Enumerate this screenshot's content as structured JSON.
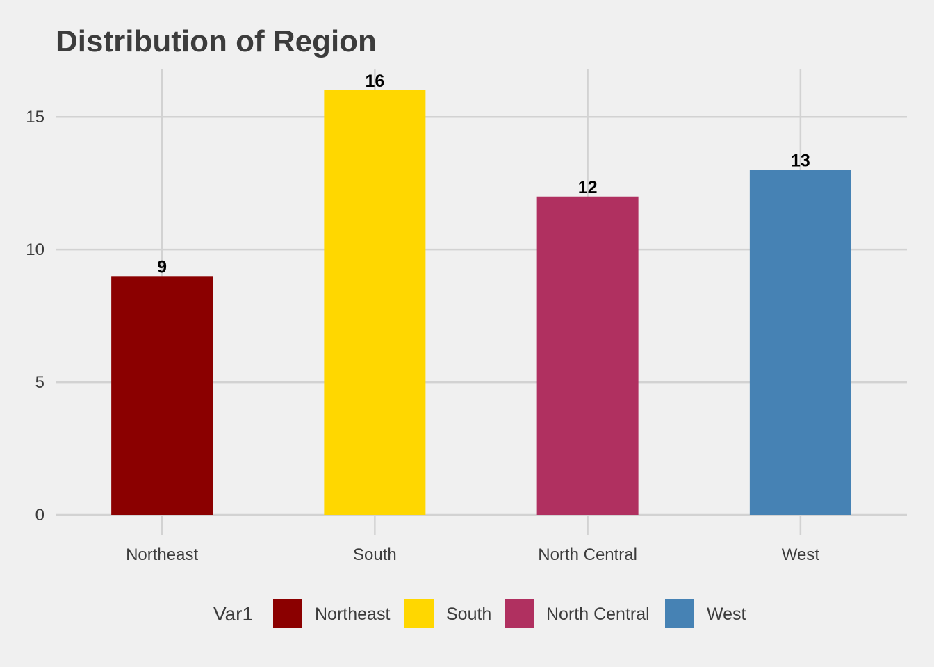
{
  "chart_data": {
    "type": "bar",
    "title": "Distribution of Region",
    "xlabel": "",
    "ylabel": "",
    "categories": [
      "Northeast",
      "South",
      "North Central",
      "West"
    ],
    "values": [
      9,
      16,
      12,
      13
    ],
    "colors": [
      "#8b0000",
      "#ffd700",
      "#b03060",
      "#4682b4"
    ],
    "ylim": [
      0,
      16.8
    ],
    "yticks": [
      0,
      5,
      10,
      15
    ],
    "grid": true,
    "legend": {
      "title": "Var1",
      "position": "bottom",
      "entries": [
        "Northeast",
        "South",
        "North Central",
        "West"
      ]
    },
    "background": "#f0f0f0",
    "grid_color": "#d2d2d2"
  }
}
